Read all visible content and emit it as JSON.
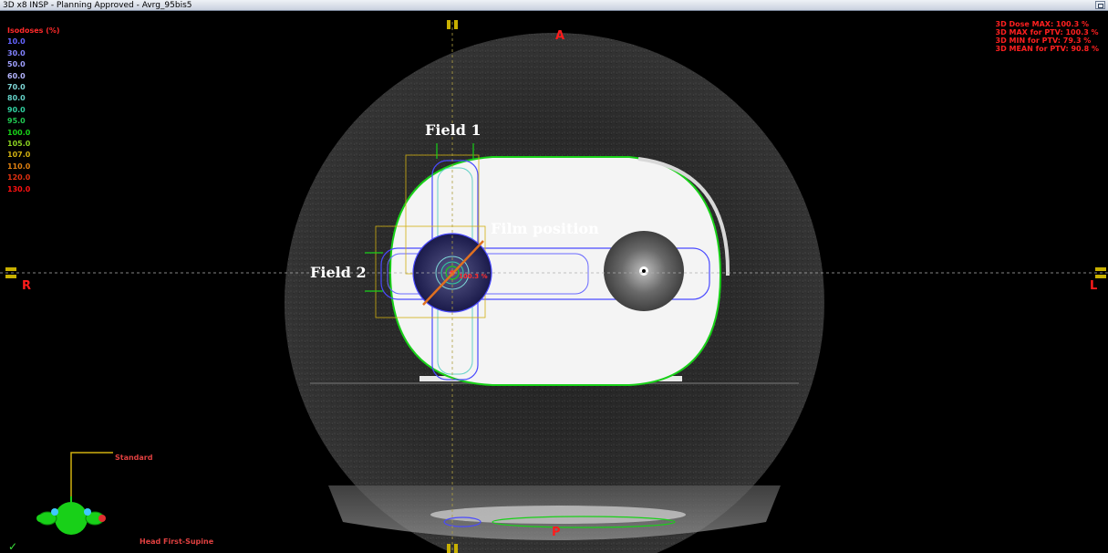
{
  "window": {
    "title": "3D x8 INSP  -  Planning Approved - Avrg_95bis5"
  },
  "isodose_legend": {
    "header": "Isodoses (%)",
    "levels": [
      {
        "label": "10.0",
        "color": "#4a4aff"
      },
      {
        "label": "30.0",
        "color": "#6a6aff"
      },
      {
        "label": "50.0",
        "color": "#8a8aff"
      },
      {
        "label": "60.0",
        "color": "#a0a0ff"
      },
      {
        "label": "70.0",
        "color": "#7fd8d8"
      },
      {
        "label": "80.0",
        "color": "#64d2c8"
      },
      {
        "label": "90.0",
        "color": "#30d0a0"
      },
      {
        "label": "95.0",
        "color": "#20c850"
      },
      {
        "label": "100.0",
        "color": "#18d018"
      },
      {
        "label": "105.0",
        "color": "#8ad020"
      },
      {
        "label": "107.0",
        "color": "#d0b010"
      },
      {
        "label": "110.0",
        "color": "#e08010"
      },
      {
        "label": "120.0",
        "color": "#e03010"
      },
      {
        "label": "130.0",
        "color": "#ff1010"
      }
    ]
  },
  "dose_stats": {
    "max": "3D Dose MAX: 100.3 %",
    "max_ptv": "3D MAX for PTV: 100.3 %",
    "min_ptv": "3D MIN for PTV: 79.3 %",
    "mean_ptv": "3D MEAN for PTV: 90.8 %"
  },
  "orientation": {
    "anterior": "A",
    "posterior": "P",
    "right": "R",
    "left": "L"
  },
  "annotations": {
    "field1": "Field 1",
    "field2": "Field 2",
    "film": "Film position",
    "dose_point": "100.3 %"
  },
  "patient_icon": {
    "label": "Standard",
    "position": "Head First-Supine",
    "status": "✓"
  },
  "colors": {
    "accent_red": "#ff1c1c",
    "body_contour": "#18d018",
    "isodose_blue": "#4a4aff",
    "crosshair": "#c8b000"
  }
}
